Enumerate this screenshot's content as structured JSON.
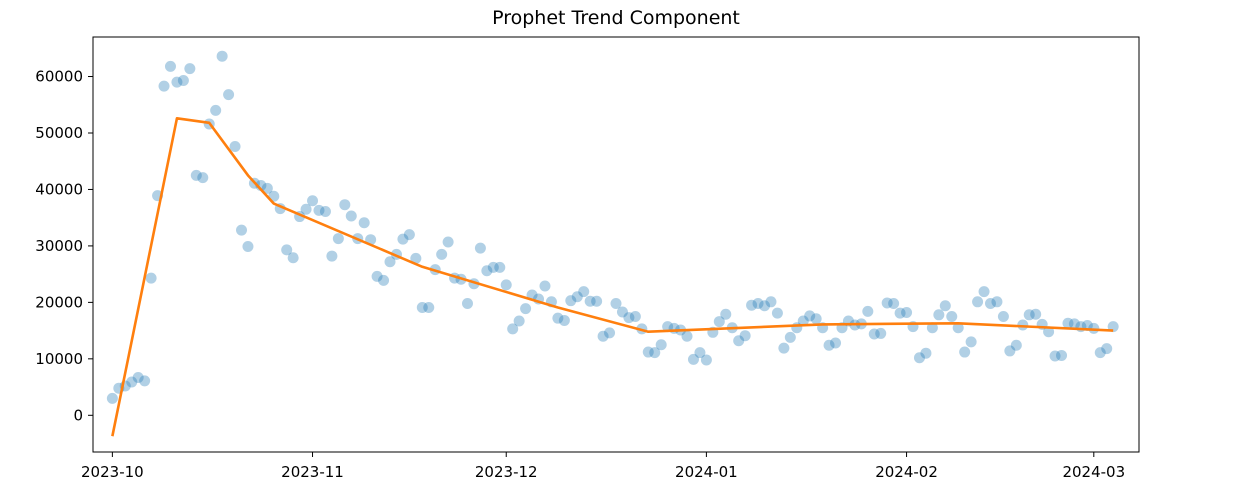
{
  "chart_data": {
    "type": "scatter",
    "title": "Prophet Trend Component",
    "xlabel": "",
    "ylabel": "",
    "x_axis": {
      "type": "date",
      "range": [
        "2023-09-28",
        "2024-03-08"
      ],
      "ticks": [
        "2023-10-01",
        "2023-11-01",
        "2023-12-01",
        "2024-01-01",
        "2024-02-01",
        "2024-03-01"
      ],
      "tick_labels": [
        "2023-10",
        "2023-11",
        "2023-12",
        "2024-01",
        "2024-02",
        "2024-03"
      ]
    },
    "y_axis": {
      "range": [
        -6500,
        67000
      ],
      "ticks": [
        0,
        10000,
        20000,
        30000,
        40000,
        50000,
        60000
      ],
      "tick_labels": [
        "0",
        "10000",
        "20000",
        "30000",
        "40000",
        "50000",
        "60000"
      ]
    },
    "grid": false,
    "legend": "none",
    "series": [
      {
        "kind": "scatter",
        "color": "#1f77b4",
        "alpha": 0.35,
        "points": [
          [
            "2023-10-01",
            3000
          ],
          [
            "2023-10-02",
            4800
          ],
          [
            "2023-10-03",
            5200
          ],
          [
            "2023-10-04",
            5900
          ],
          [
            "2023-10-05",
            6700
          ],
          [
            "2023-10-06",
            6100
          ],
          [
            "2023-10-07",
            24300
          ],
          [
            "2023-10-08",
            38900
          ],
          [
            "2023-10-09",
            58300
          ],
          [
            "2023-10-10",
            61800
          ],
          [
            "2023-10-11",
            59000
          ],
          [
            "2023-10-12",
            59300
          ],
          [
            "2023-10-13",
            61400
          ],
          [
            "2023-10-14",
            42500
          ],
          [
            "2023-10-15",
            42100
          ],
          [
            "2023-10-16",
            51600
          ],
          [
            "2023-10-17",
            54000
          ],
          [
            "2023-10-18",
            63600
          ],
          [
            "2023-10-19",
            56800
          ],
          [
            "2023-10-20",
            47600
          ],
          [
            "2023-10-21",
            32800
          ],
          [
            "2023-10-22",
            29900
          ],
          [
            "2023-10-23",
            41100
          ],
          [
            "2023-10-24",
            40700
          ],
          [
            "2023-10-25",
            40200
          ],
          [
            "2023-10-26",
            38800
          ],
          [
            "2023-10-27",
            36600
          ],
          [
            "2023-10-28",
            29300
          ],
          [
            "2023-10-29",
            27900
          ],
          [
            "2023-10-30",
            35200
          ],
          [
            "2023-10-31",
            36500
          ],
          [
            "2023-11-01",
            38000
          ],
          [
            "2023-11-02",
            36300
          ],
          [
            "2023-11-03",
            36100
          ],
          [
            "2023-11-04",
            28200
          ],
          [
            "2023-11-05",
            31300
          ],
          [
            "2023-11-06",
            37300
          ],
          [
            "2023-11-07",
            35300
          ],
          [
            "2023-11-08",
            31300
          ],
          [
            "2023-11-09",
            34100
          ],
          [
            "2023-11-10",
            31100
          ],
          [
            "2023-11-11",
            24600
          ],
          [
            "2023-11-12",
            23900
          ],
          [
            "2023-11-13",
            27200
          ],
          [
            "2023-11-14",
            28500
          ],
          [
            "2023-11-15",
            31200
          ],
          [
            "2023-11-16",
            32000
          ],
          [
            "2023-11-17",
            27800
          ],
          [
            "2023-11-18",
            19100
          ],
          [
            "2023-11-19",
            19100
          ],
          [
            "2023-11-20",
            25800
          ],
          [
            "2023-11-21",
            28500
          ],
          [
            "2023-11-22",
            30700
          ],
          [
            "2023-11-23",
            24300
          ],
          [
            "2023-11-24",
            24100
          ],
          [
            "2023-11-25",
            19800
          ],
          [
            "2023-11-26",
            23300
          ],
          [
            "2023-11-27",
            29600
          ],
          [
            "2023-11-28",
            25600
          ],
          [
            "2023-11-29",
            26200
          ],
          [
            "2023-11-30",
            26200
          ],
          [
            "2023-12-01",
            23100
          ],
          [
            "2023-12-02",
            15300
          ],
          [
            "2023-12-03",
            16700
          ],
          [
            "2023-12-04",
            18900
          ],
          [
            "2023-12-05",
            21300
          ],
          [
            "2023-12-06",
            20600
          ],
          [
            "2023-12-07",
            22900
          ],
          [
            "2023-12-08",
            20100
          ],
          [
            "2023-12-09",
            17200
          ],
          [
            "2023-12-10",
            16800
          ],
          [
            "2023-12-11",
            20300
          ],
          [
            "2023-12-12",
            21000
          ],
          [
            "2023-12-13",
            21900
          ],
          [
            "2023-12-14",
            20200
          ],
          [
            "2023-12-15",
            20200
          ],
          [
            "2023-12-16",
            14000
          ],
          [
            "2023-12-17",
            14600
          ],
          [
            "2023-12-18",
            19800
          ],
          [
            "2023-12-19",
            18300
          ],
          [
            "2023-12-20",
            17300
          ],
          [
            "2023-12-21",
            17500
          ],
          [
            "2023-12-22",
            15300
          ],
          [
            "2023-12-23",
            11200
          ],
          [
            "2023-12-24",
            11100
          ],
          [
            "2023-12-25",
            12500
          ],
          [
            "2023-12-26",
            15700
          ],
          [
            "2023-12-27",
            15400
          ],
          [
            "2023-12-28",
            15100
          ],
          [
            "2023-12-29",
            14000
          ],
          [
            "2023-12-30",
            9900
          ],
          [
            "2023-12-31",
            11100
          ],
          [
            "2024-01-01",
            9800
          ],
          [
            "2024-01-02",
            14700
          ],
          [
            "2024-01-03",
            16600
          ],
          [
            "2024-01-04",
            17900
          ],
          [
            "2024-01-05",
            15500
          ],
          [
            "2024-01-06",
            13200
          ],
          [
            "2024-01-07",
            14100
          ],
          [
            "2024-01-08",
            19500
          ],
          [
            "2024-01-09",
            19800
          ],
          [
            "2024-01-10",
            19400
          ],
          [
            "2024-01-11",
            20100
          ],
          [
            "2024-01-12",
            18100
          ],
          [
            "2024-01-13",
            11900
          ],
          [
            "2024-01-14",
            13800
          ],
          [
            "2024-01-15",
            15500
          ],
          [
            "2024-01-16",
            16700
          ],
          [
            "2024-01-17",
            17600
          ],
          [
            "2024-01-18",
            17100
          ],
          [
            "2024-01-19",
            15500
          ],
          [
            "2024-01-20",
            12400
          ],
          [
            "2024-01-21",
            12800
          ],
          [
            "2024-01-22",
            15500
          ],
          [
            "2024-01-23",
            16700
          ],
          [
            "2024-01-24",
            16000
          ],
          [
            "2024-01-25",
            16200
          ],
          [
            "2024-01-26",
            18400
          ],
          [
            "2024-01-27",
            14400
          ],
          [
            "2024-01-28",
            14500
          ],
          [
            "2024-01-29",
            19900
          ],
          [
            "2024-01-30",
            19800
          ],
          [
            "2024-01-31",
            18100
          ],
          [
            "2024-02-01",
            18200
          ],
          [
            "2024-02-02",
            15700
          ],
          [
            "2024-02-03",
            10200
          ],
          [
            "2024-02-04",
            11000
          ],
          [
            "2024-02-05",
            15500
          ],
          [
            "2024-02-06",
            17800
          ],
          [
            "2024-02-07",
            19400
          ],
          [
            "2024-02-08",
            17500
          ],
          [
            "2024-02-09",
            15500
          ],
          [
            "2024-02-10",
            11200
          ],
          [
            "2024-02-11",
            13000
          ],
          [
            "2024-02-12",
            20100
          ],
          [
            "2024-02-13",
            21900
          ],
          [
            "2024-02-14",
            19800
          ],
          [
            "2024-02-15",
            20100
          ],
          [
            "2024-02-16",
            17500
          ],
          [
            "2024-02-17",
            11400
          ],
          [
            "2024-02-18",
            12400
          ],
          [
            "2024-02-19",
            16000
          ],
          [
            "2024-02-20",
            17800
          ],
          [
            "2024-02-21",
            17900
          ],
          [
            "2024-02-22",
            16100
          ],
          [
            "2024-02-23",
            14800
          ],
          [
            "2024-02-24",
            10500
          ],
          [
            "2024-02-25",
            10600
          ],
          [
            "2024-02-26",
            16300
          ],
          [
            "2024-02-27",
            16200
          ],
          [
            "2024-02-28",
            15700
          ],
          [
            "2024-02-29",
            15900
          ],
          [
            "2024-03-01",
            15400
          ],
          [
            "2024-03-02",
            11100
          ],
          [
            "2024-03-03",
            11800
          ],
          [
            "2024-03-04",
            15700
          ]
        ]
      },
      {
        "kind": "line",
        "color": "#ff7f0e",
        "points": [
          [
            "2023-10-01",
            -3700
          ],
          [
            "2023-10-11",
            52600
          ],
          [
            "2023-10-16",
            51800
          ],
          [
            "2023-10-22",
            42500
          ],
          [
            "2023-10-26",
            37500
          ],
          [
            "2023-11-18",
            26300
          ],
          [
            "2023-12-09",
            19100
          ],
          [
            "2023-12-23",
            14800
          ],
          [
            "2024-01-19",
            16100
          ],
          [
            "2024-02-09",
            16300
          ],
          [
            "2024-03-04",
            15000
          ]
        ]
      }
    ]
  }
}
